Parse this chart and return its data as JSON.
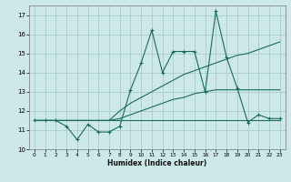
{
  "xlabel": "Humidex (Indice chaleur)",
  "bg_color": "#cce8e8",
  "grid_color": "#aacccc",
  "line_color": "#1a6b5a",
  "x": [
    0,
    1,
    2,
    3,
    4,
    5,
    6,
    7,
    8,
    9,
    10,
    11,
    12,
    13,
    14,
    15,
    16,
    17,
    18,
    19,
    20,
    21,
    22,
    23
  ],
  "y_main": [
    11.5,
    11.5,
    11.5,
    11.2,
    10.5,
    11.3,
    10.9,
    10.9,
    11.2,
    13.1,
    14.5,
    16.2,
    14.0,
    15.1,
    15.1,
    15.1,
    13.0,
    17.2,
    14.8,
    13.2,
    11.4,
    11.8,
    11.6,
    11.6
  ],
  "y_trend_high": [
    11.5,
    11.5,
    11.5,
    11.5,
    11.5,
    11.5,
    11.5,
    11.5,
    12.0,
    12.4,
    12.7,
    13.0,
    13.3,
    13.6,
    13.9,
    14.1,
    14.3,
    14.5,
    14.7,
    14.9,
    15.0,
    15.2,
    15.4,
    15.6
  ],
  "y_trend_mid": [
    11.5,
    11.5,
    11.5,
    11.5,
    11.5,
    11.5,
    11.5,
    11.5,
    11.6,
    11.8,
    12.0,
    12.2,
    12.4,
    12.6,
    12.7,
    12.9,
    13.0,
    13.1,
    13.1,
    13.1,
    13.1,
    13.1,
    13.1,
    13.1
  ],
  "y_flat": [
    11.5,
    11.5,
    11.5,
    11.5,
    11.5,
    11.5,
    11.5,
    11.5,
    11.5,
    11.5,
    11.5,
    11.5,
    11.5,
    11.5,
    11.5,
    11.5,
    11.5,
    11.5,
    11.5,
    11.5,
    11.5,
    11.5,
    11.5,
    11.5
  ],
  "ylim": [
    10,
    17.5
  ],
  "xlim": [
    -0.5,
    23.5
  ],
  "yticks": [
    10,
    11,
    12,
    13,
    14,
    15,
    16,
    17
  ],
  "xticks": [
    0,
    1,
    2,
    3,
    4,
    5,
    6,
    7,
    8,
    9,
    10,
    11,
    12,
    13,
    14,
    15,
    16,
    17,
    18,
    19,
    20,
    21,
    22,
    23
  ]
}
